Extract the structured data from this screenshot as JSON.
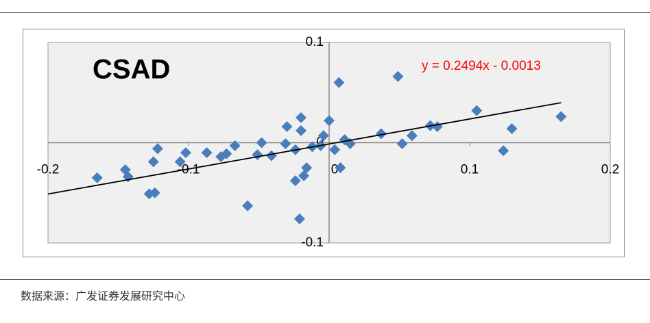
{
  "chart_data": {
    "type": "scatter",
    "title": "CSAD",
    "color": "#4a7ebb",
    "x": [
      -0.165,
      -0.145,
      -0.143,
      -0.128,
      -0.124,
      -0.125,
      -0.122,
      -0.106,
      -0.102,
      -0.087,
      -0.077,
      -0.073,
      -0.067,
      -0.058,
      -0.051,
      -0.048,
      -0.041,
      -0.031,
      -0.03,
      -0.024,
      -0.024,
      -0.021,
      -0.02,
      -0.02,
      -0.018,
      -0.016,
      -0.012,
      -0.006,
      -0.004,
      0.0,
      0.004,
      0.007,
      0.008,
      0.011,
      0.015,
      0.037,
      0.049,
      0.052,
      0.059,
      0.072,
      0.077,
      0.105,
      0.124,
      0.13,
      0.165
    ],
    "values": [
      -0.035,
      -0.027,
      -0.034,
      -0.051,
      -0.05,
      -0.019,
      -0.006,
      -0.019,
      -0.01,
      -0.01,
      -0.014,
      -0.011,
      -0.003,
      -0.063,
      -0.012,
      0.0,
      -0.013,
      -0.001,
      0.016,
      -0.007,
      -0.038,
      -0.076,
      0.025,
      0.012,
      -0.033,
      -0.025,
      -0.004,
      -0.003,
      0.007,
      0.022,
      -0.007,
      0.06,
      -0.025,
      0.003,
      -0.001,
      0.009,
      0.066,
      -0.001,
      0.007,
      0.017,
      0.016,
      0.032,
      -0.008,
      0.014,
      0.026
    ],
    "trendline": {
      "label": "y = 0.2494x - 0.0013",
      "slope": 0.2494,
      "intercept": -0.0013,
      "xrange": [
        -0.2,
        0.165
      ],
      "color": "#000000",
      "label_color": "#ff0000"
    },
    "xlim": [
      -0.2,
      0.2
    ],
    "ylim": [
      -0.1,
      0.1
    ],
    "xticks": [
      -0.2,
      -0.1,
      0,
      0.1,
      0.2
    ],
    "yticks": [
      -0.1,
      0,
      0.1
    ]
  },
  "source": "数据来源：广发证券发展研究中心"
}
